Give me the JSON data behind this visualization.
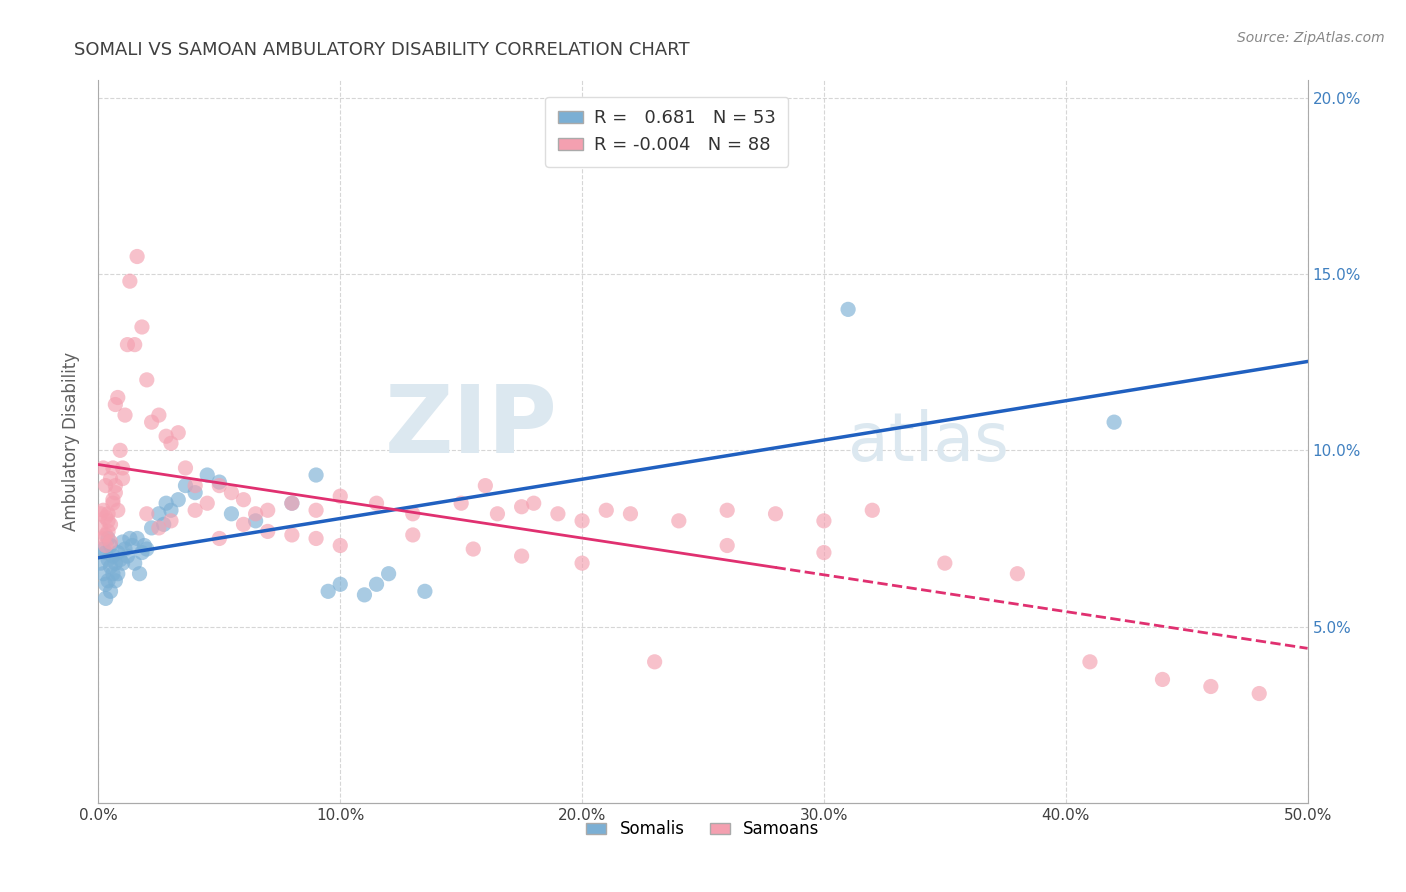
{
  "title": "SOMALI VS SAMOAN AMBULATORY DISABILITY CORRELATION CHART",
  "source": "Source: ZipAtlas.com",
  "ylabel": "Ambulatory Disability",
  "xlim": [
    0.0,
    0.5
  ],
  "ylim": [
    0.0,
    0.205
  ],
  "xticks": [
    0.0,
    0.1,
    0.2,
    0.3,
    0.4,
    0.5
  ],
  "xticklabels": [
    "0.0%",
    "10.0%",
    "20.0%",
    "30.0%",
    "40.0%",
    "50.0%"
  ],
  "yticks": [
    0.05,
    0.1,
    0.15,
    0.2
  ],
  "yticklabels": [
    "5.0%",
    "10.0%",
    "15.0%",
    "20.0%"
  ],
  "somali_R": 0.681,
  "somali_N": 53,
  "samoan_R": -0.004,
  "samoan_N": 88,
  "somali_color": "#7bafd4",
  "samoan_color": "#f4a0b0",
  "somali_line_color": "#2060c0",
  "samoan_line_color": "#e03070",
  "watermark_zip": "ZIP",
  "watermark_atlas": "atlas",
  "watermark_color": "#dce8f0",
  "background_color": "#ffffff",
  "grid_color": "#cccccc",
  "title_color": "#404040",
  "axis_label_color": "#606060",
  "right_tick_color": "#4080c0",
  "somali_x": [
    0.001,
    0.002,
    0.002,
    0.003,
    0.003,
    0.003,
    0.004,
    0.004,
    0.004,
    0.005,
    0.005,
    0.005,
    0.006,
    0.006,
    0.007,
    0.007,
    0.008,
    0.008,
    0.009,
    0.01,
    0.01,
    0.011,
    0.012,
    0.013,
    0.014,
    0.015,
    0.016,
    0.017,
    0.018,
    0.019,
    0.02,
    0.022,
    0.025,
    0.027,
    0.028,
    0.03,
    0.033,
    0.036,
    0.04,
    0.045,
    0.05,
    0.055,
    0.065,
    0.08,
    0.09,
    0.095,
    0.1,
    0.11,
    0.115,
    0.12,
    0.135,
    0.31,
    0.42
  ],
  "somali_y": [
    0.068,
    0.072,
    0.065,
    0.062,
    0.058,
    0.071,
    0.069,
    0.063,
    0.075,
    0.06,
    0.073,
    0.067,
    0.065,
    0.07,
    0.063,
    0.068,
    0.071,
    0.065,
    0.069,
    0.074,
    0.068,
    0.072,
    0.07,
    0.075,
    0.073,
    0.068,
    0.075,
    0.065,
    0.071,
    0.073,
    0.072,
    0.078,
    0.082,
    0.079,
    0.085,
    0.083,
    0.086,
    0.09,
    0.088,
    0.093,
    0.091,
    0.082,
    0.08,
    0.085,
    0.093,
    0.06,
    0.062,
    0.059,
    0.062,
    0.065,
    0.06,
    0.14,
    0.108
  ],
  "samoan_x": [
    0.001,
    0.001,
    0.002,
    0.002,
    0.002,
    0.003,
    0.003,
    0.003,
    0.003,
    0.004,
    0.004,
    0.004,
    0.005,
    0.005,
    0.005,
    0.006,
    0.006,
    0.006,
    0.007,
    0.007,
    0.007,
    0.008,
    0.008,
    0.009,
    0.01,
    0.01,
    0.011,
    0.012,
    0.013,
    0.015,
    0.016,
    0.018,
    0.02,
    0.022,
    0.025,
    0.028,
    0.03,
    0.033,
    0.036,
    0.04,
    0.045,
    0.05,
    0.055,
    0.06,
    0.065,
    0.07,
    0.08,
    0.09,
    0.1,
    0.115,
    0.13,
    0.15,
    0.16,
    0.165,
    0.175,
    0.18,
    0.19,
    0.2,
    0.21,
    0.22,
    0.24,
    0.26,
    0.28,
    0.3,
    0.32,
    0.02,
    0.025,
    0.03,
    0.04,
    0.05,
    0.06,
    0.07,
    0.08,
    0.09,
    0.1,
    0.13,
    0.155,
    0.175,
    0.2,
    0.23,
    0.26,
    0.3,
    0.35,
    0.38,
    0.41,
    0.44,
    0.46,
    0.48
  ],
  "samoan_y": [
    0.082,
    0.078,
    0.075,
    0.083,
    0.095,
    0.076,
    0.081,
    0.09,
    0.073,
    0.077,
    0.08,
    0.082,
    0.074,
    0.092,
    0.079,
    0.085,
    0.086,
    0.095,
    0.09,
    0.088,
    0.113,
    0.083,
    0.115,
    0.1,
    0.092,
    0.095,
    0.11,
    0.13,
    0.148,
    0.13,
    0.155,
    0.135,
    0.12,
    0.108,
    0.11,
    0.104,
    0.102,
    0.105,
    0.095,
    0.09,
    0.085,
    0.09,
    0.088,
    0.086,
    0.082,
    0.083,
    0.085,
    0.083,
    0.087,
    0.085,
    0.082,
    0.085,
    0.09,
    0.082,
    0.084,
    0.085,
    0.082,
    0.08,
    0.083,
    0.082,
    0.08,
    0.083,
    0.082,
    0.08,
    0.083,
    0.082,
    0.078,
    0.08,
    0.083,
    0.075,
    0.079,
    0.077,
    0.076,
    0.075,
    0.073,
    0.076,
    0.072,
    0.07,
    0.068,
    0.04,
    0.073,
    0.071,
    0.068,
    0.065,
    0.04,
    0.035,
    0.033,
    0.031
  ]
}
